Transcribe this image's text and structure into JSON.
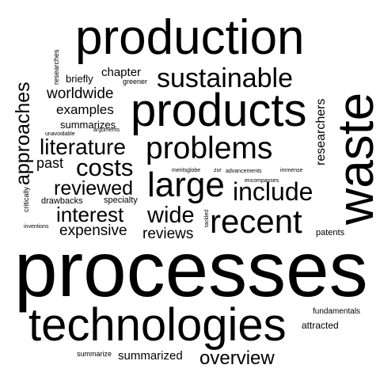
{
  "words": {
    "processes": "processes",
    "technologies": "technologies",
    "production": "production",
    "products": "products",
    "waste": "waste",
    "sustainable": "sustainable",
    "problems": "problems",
    "large": "large",
    "recent": "recent",
    "include": "include",
    "costs": "costs",
    "literature": "literature",
    "interest": "interest",
    "wide": "wide",
    "reviewed": "reviewed",
    "approaches": "approaches",
    "overview": "overview",
    "expensive": "expensive",
    "reviews": "reviews",
    "worldwide": "worldwide",
    "examples": "examples",
    "summarized": "summarized",
    "researchers": "researchers",
    "past": "past",
    "chapter": "chapter",
    "briefly": "briefly",
    "summarizes": "summarizes",
    "drawbacks": "drawbacks",
    "specialty": "specialty",
    "patents": "patents",
    "attracted": "attracted",
    "fundamentals": "fundamentals",
    "summarize": "summarize",
    "researches": "researches",
    "greener": "greener",
    "arguments": "arguments",
    "unavoidable": "unavoidable",
    "critically": "critically",
    "inventions": "inventions",
    "meritsglobe": "meritsglobe",
    "zur": "zur",
    "advancements": "advancements",
    "encompasses": "encompasses",
    "immense": "immense",
    "tackled": "tackled"
  }
}
